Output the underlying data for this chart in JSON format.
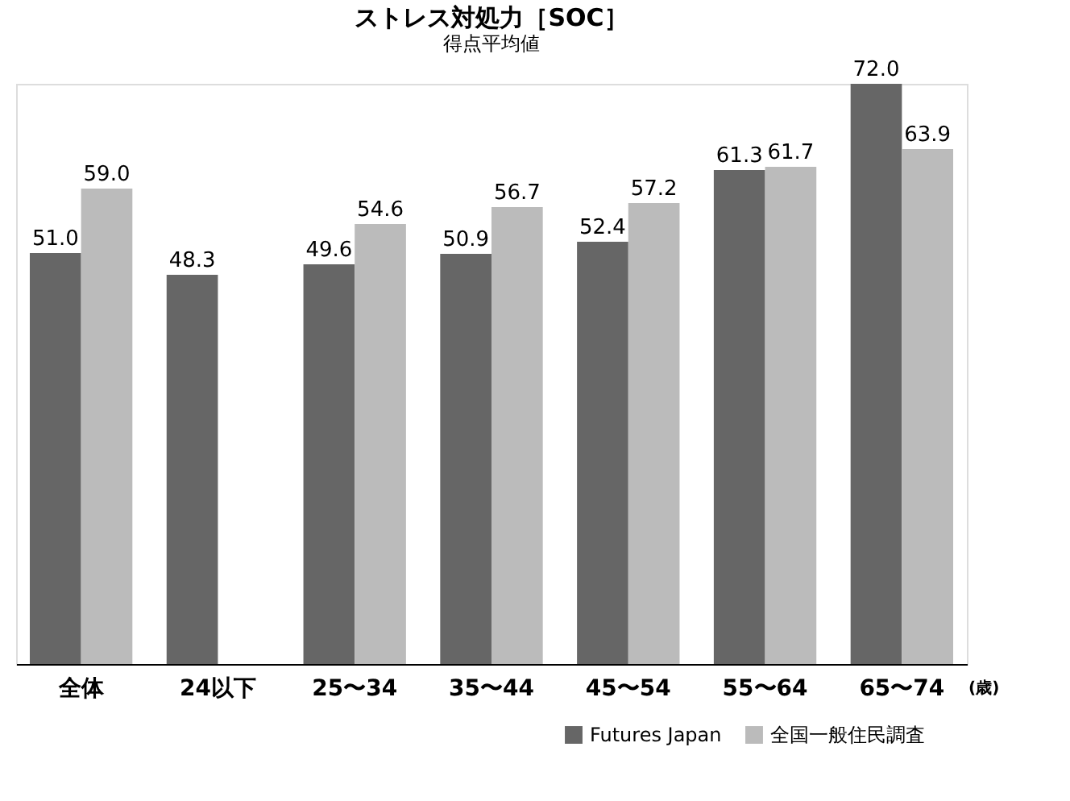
{
  "chart_data": {
    "type": "bar",
    "title": "ストレス対処力［SOC］",
    "subtitle": "得点平均値",
    "categories": [
      "全体",
      "24以下",
      "25〜34",
      "35〜44",
      "45〜54",
      "55〜64",
      "65〜74"
    ],
    "series": [
      {
        "name": "Futures Japan",
        "color": "#666666",
        "values": [
          51.0,
          48.3,
          49.6,
          50.9,
          52.4,
          61.3,
          72.0
        ],
        "value_labels": [
          "51.0",
          "48.3",
          "49.6",
          "50.9",
          "52.4",
          "61.3",
          "72.0"
        ]
      },
      {
        "name": "全国一般住民調査",
        "color": "#bbbbbb",
        "values": [
          59.0,
          null,
          54.6,
          56.7,
          57.2,
          61.7,
          63.9
        ],
        "value_labels": [
          "59.0",
          null,
          "54.6",
          "56.7",
          "57.2",
          "61.7",
          "63.9"
        ]
      }
    ],
    "legend": "bottom right",
    "annotations": [
      "(歳)"
    ]
  }
}
